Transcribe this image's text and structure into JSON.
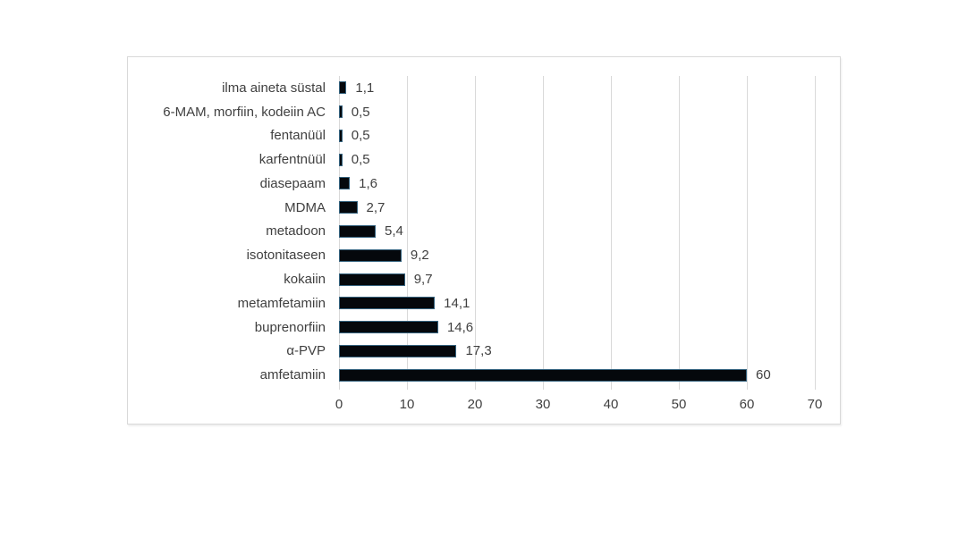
{
  "chart_data": {
    "type": "bar",
    "orientation": "horizontal",
    "title": "",
    "xlabel": "",
    "ylabel": "",
    "xlim": [
      0,
      70
    ],
    "x_ticks": [
      "0",
      "10",
      "20",
      "30",
      "40",
      "50",
      "60",
      "70"
    ],
    "x_tick_values": [
      0,
      10,
      20,
      30,
      40,
      50,
      60,
      70
    ],
    "grid": "vertical-light-gray",
    "legend": "none",
    "categories": [
      "ilma aineta süstal",
      "6-MAM, morfiin, kodeiin AC",
      "fentanüül",
      "karfentnüül",
      "diasepaam",
      "MDMA",
      "metadoon",
      "isotonitaseen",
      "kokaiin",
      "metamfetamiin",
      "buprenorfiin",
      "α-PVP",
      "amfetamiin"
    ],
    "values": [
      1.1,
      0.5,
      0.5,
      0.5,
      1.6,
      2.7,
      5.4,
      9.2,
      9.7,
      14.1,
      14.6,
      17.3,
      60
    ],
    "value_labels": [
      "1,1",
      "0,5",
      "0,5",
      "0,5",
      "1,6",
      "2,7",
      "5,4",
      "9,2",
      "9,7",
      "14,1",
      "14,6",
      "17,3",
      "60"
    ],
    "colors": {
      "bar_fill": "#05080c",
      "bar_border": "#35637f",
      "gridline": "#d9d9d9",
      "panel_border": "#d9d9d9",
      "text": "#404040",
      "background": "#ffffff"
    }
  }
}
